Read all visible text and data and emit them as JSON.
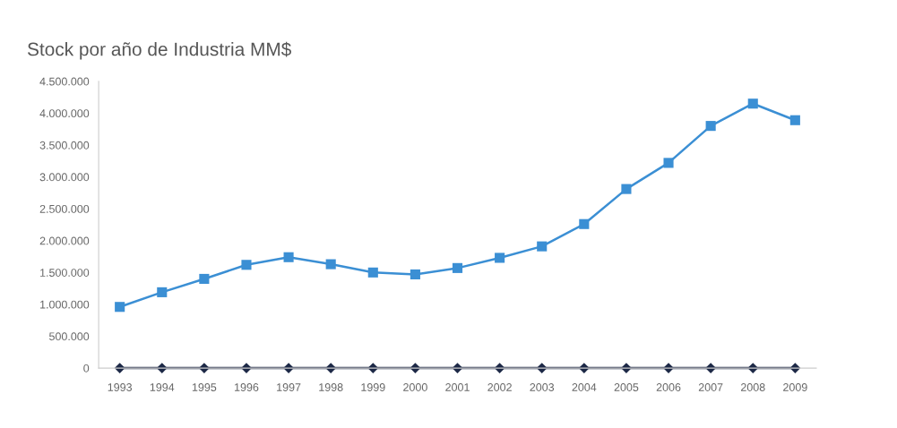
{
  "chart_data": {
    "type": "line",
    "title": "Stock por año de Industria MM$",
    "categories": [
      "1993",
      "1994",
      "1995",
      "1996",
      "1997",
      "1998",
      "1999",
      "2000",
      "2001",
      "2002",
      "2003",
      "2004",
      "2005",
      "2006",
      "2007",
      "2008",
      "2009"
    ],
    "series": [
      {
        "color": "#3b8fd4",
        "marker": "square",
        "values": [
          960000,
          1190000,
          1400000,
          1620000,
          1740000,
          1630000,
          1500000,
          1470000,
          1570000,
          1730000,
          1910000,
          2260000,
          2810000,
          3220000,
          3800000,
          4150000,
          3890000
        ]
      },
      {
        "color": "#1c2846",
        "marker": "diamond",
        "values": [
          0,
          0,
          0,
          0,
          0,
          0,
          0,
          0,
          0,
          0,
          0,
          0,
          0,
          0,
          0,
          0,
          0
        ]
      }
    ],
    "ylim": [
      0,
      4500000
    ],
    "yticks": [
      0,
      {
        "value": 500000,
        "label": "500.000"
      },
      {
        "value": 1000000,
        "label": "1.000.000"
      },
      {
        "value": 1500000,
        "label": "1.500.000"
      },
      {
        "value": 2000000,
        "label": "2.000.000"
      },
      {
        "value": 2500000,
        "label": "2.500.000"
      },
      {
        "value": 3000000,
        "label": "3.000.000"
      },
      {
        "value": 3500000,
        "label": "3.500.000"
      },
      {
        "value": 4000000,
        "label": "4.000.000"
      },
      {
        "value": 4500000,
        "label": "4.500.000"
      }
    ],
    "grid": false
  }
}
